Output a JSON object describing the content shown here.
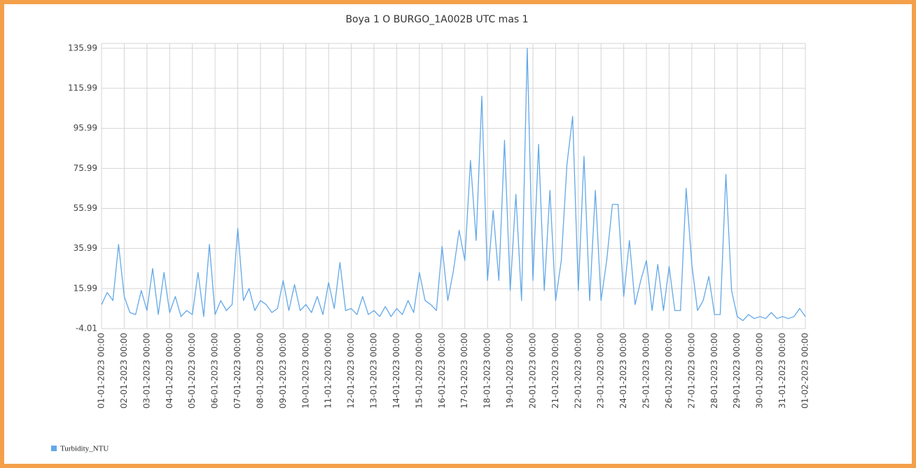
{
  "chart_data": {
    "type": "line",
    "title": "Boya 1 O BURGO_1A002B UTC mas 1",
    "x": [
      "01-01-2023 00:00",
      "01-01-2023 06:00",
      "01-01-2023 12:00",
      "01-01-2023 18:00",
      "02-01-2023 00:00",
      "02-01-2023 06:00",
      "02-01-2023 12:00",
      "02-01-2023 18:00",
      "03-01-2023 00:00",
      "03-01-2023 06:00",
      "03-01-2023 12:00",
      "03-01-2023 18:00",
      "04-01-2023 00:00",
      "04-01-2023 06:00",
      "04-01-2023 12:00",
      "04-01-2023 18:00",
      "05-01-2023 00:00",
      "05-01-2023 06:00",
      "05-01-2023 12:00",
      "05-01-2023 18:00",
      "06-01-2023 00:00",
      "06-01-2023 06:00",
      "06-01-2023 12:00",
      "06-01-2023 18:00",
      "07-01-2023 00:00",
      "07-01-2023 06:00",
      "07-01-2023 12:00",
      "07-01-2023 18:00",
      "08-01-2023 00:00",
      "08-01-2023 06:00",
      "08-01-2023 12:00",
      "08-01-2023 18:00",
      "09-01-2023 00:00",
      "09-01-2023 06:00",
      "09-01-2023 12:00",
      "09-01-2023 18:00",
      "10-01-2023 00:00",
      "10-01-2023 06:00",
      "10-01-2023 12:00",
      "10-01-2023 18:00",
      "11-01-2023 00:00",
      "11-01-2023 06:00",
      "11-01-2023 12:00",
      "11-01-2023 18:00",
      "12-01-2023 00:00",
      "12-01-2023 06:00",
      "12-01-2023 12:00",
      "12-01-2023 18:00",
      "13-01-2023 00:00",
      "13-01-2023 06:00",
      "13-01-2023 12:00",
      "13-01-2023 18:00",
      "14-01-2023 00:00",
      "14-01-2023 06:00",
      "14-01-2023 12:00",
      "14-01-2023 18:00",
      "15-01-2023 00:00",
      "15-01-2023 06:00",
      "15-01-2023 12:00",
      "15-01-2023 18:00",
      "16-01-2023 00:00",
      "16-01-2023 06:00",
      "16-01-2023 12:00",
      "16-01-2023 18:00",
      "17-01-2023 00:00",
      "17-01-2023 06:00",
      "17-01-2023 12:00",
      "17-01-2023 18:00",
      "18-01-2023 00:00",
      "18-01-2023 06:00",
      "18-01-2023 12:00",
      "18-01-2023 18:00",
      "19-01-2023 00:00",
      "19-01-2023 06:00",
      "19-01-2023 12:00",
      "19-01-2023 18:00",
      "20-01-2023 00:00",
      "20-01-2023 06:00",
      "20-01-2023 12:00",
      "20-01-2023 18:00",
      "21-01-2023 00:00",
      "21-01-2023 06:00",
      "21-01-2023 12:00",
      "21-01-2023 18:00",
      "22-01-2023 00:00",
      "22-01-2023 06:00",
      "22-01-2023 12:00",
      "22-01-2023 18:00",
      "23-01-2023 00:00",
      "23-01-2023 06:00",
      "23-01-2023 12:00",
      "23-01-2023 18:00",
      "24-01-2023 00:00",
      "24-01-2023 06:00",
      "24-01-2023 12:00",
      "24-01-2023 18:00",
      "25-01-2023 00:00",
      "25-01-2023 06:00",
      "25-01-2023 12:00",
      "25-01-2023 18:00",
      "26-01-2023 00:00",
      "26-01-2023 06:00",
      "26-01-2023 12:00",
      "26-01-2023 18:00",
      "27-01-2023 00:00",
      "27-01-2023 06:00",
      "27-01-2023 12:00",
      "27-01-2023 18:00",
      "28-01-2023 00:00",
      "28-01-2023 06:00",
      "28-01-2023 12:00",
      "28-01-2023 18:00",
      "29-01-2023 00:00",
      "29-01-2023 06:00",
      "29-01-2023 12:00",
      "29-01-2023 18:00",
      "30-01-2023 00:00",
      "30-01-2023 06:00",
      "30-01-2023 12:00",
      "30-01-2023 18:00",
      "31-01-2023 00:00",
      "31-01-2023 06:00",
      "31-01-2023 12:00",
      "31-01-2023 18:00",
      "01-02-2023 00:00"
    ],
    "series": [
      {
        "name": "Turbidity_NTU",
        "color": "#62a8e8",
        "values": [
          8,
          14,
          10,
          38,
          12,
          4,
          3,
          15,
          5,
          26,
          3,
          24,
          4,
          12,
          2,
          5,
          3,
          24,
          2,
          38,
          3,
          10,
          5,
          8,
          46,
          10,
          16,
          5,
          10,
          8,
          4,
          6,
          20,
          5,
          18,
          5,
          8,
          4,
          12,
          3,
          19,
          6,
          29,
          5,
          6,
          3,
          12,
          3,
          5,
          2,
          7,
          2,
          6,
          3,
          10,
          4,
          24,
          10,
          8,
          5,
          37,
          10,
          25,
          45,
          30,
          80,
          40,
          112,
          20,
          55,
          20,
          90,
          15,
          63,
          10,
          135.99,
          20,
          88,
          15,
          65,
          10,
          30,
          78,
          102,
          15,
          82,
          10,
          65,
          10,
          30,
          58,
          58,
          12,
          40,
          8,
          20,
          30,
          5,
          28,
          5,
          27,
          5,
          5,
          66,
          28,
          5,
          10,
          22,
          3,
          3,
          73,
          15,
          2,
          0,
          3,
          1,
          2,
          1,
          4,
          1,
          2,
          1,
          2,
          6,
          2
        ]
      }
    ],
    "xlim": [
      "01-01-2023 00:00",
      "01-02-2023 00:00"
    ],
    "xticks": [
      "01-01-2023 00:00",
      "02-01-2023 00:00",
      "03-01-2023 00:00",
      "04-01-2023 00:00",
      "05-01-2023 00:00",
      "06-01-2023 00:00",
      "07-01-2023 00:00",
      "08-01-2023 00:00",
      "09-01-2023 00:00",
      "10-01-2023 00:00",
      "11-01-2023 00:00",
      "12-01-2023 00:00",
      "13-01-2023 00:00",
      "14-01-2023 00:00",
      "15-01-2023 00:00",
      "16-01-2023 00:00",
      "17-01-2023 00:00",
      "18-01-2023 00:00",
      "19-01-2023 00:00",
      "20-01-2023 00:00",
      "21-01-2023 00:00",
      "22-01-2023 00:00",
      "23-01-2023 00:00",
      "24-01-2023 00:00",
      "25-01-2023 00:00",
      "26-01-2023 00:00",
      "27-01-2023 00:00",
      "28-01-2023 00:00",
      "29-01-2023 00:00",
      "30-01-2023 00:00",
      "31-01-2023 00:00",
      "01-02-2023 00:00"
    ],
    "ylim": [
      -4.01,
      138.4
    ],
    "yticks": [
      -4.01,
      15.99,
      35.99,
      55.99,
      75.99,
      95.99,
      115.99,
      135.99
    ],
    "grid": true
  }
}
